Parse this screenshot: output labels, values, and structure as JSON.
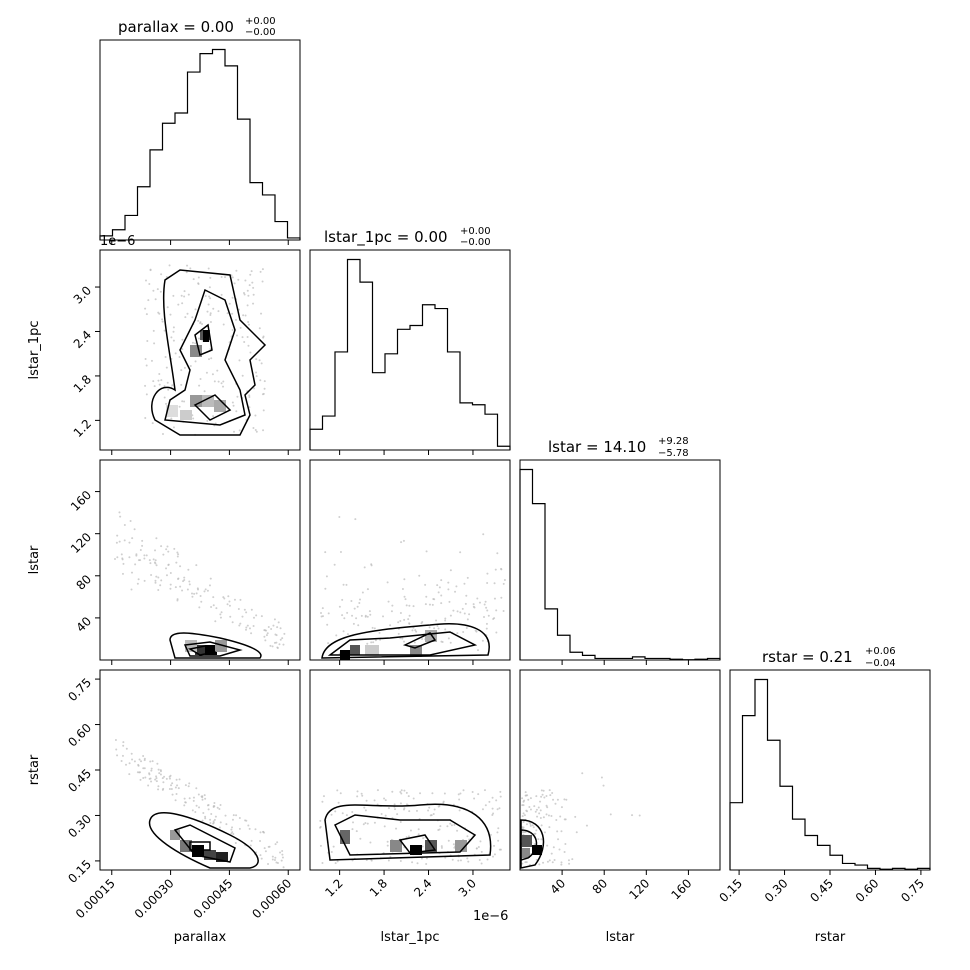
{
  "chart_data": {
    "type": "corner",
    "labels": {
      "x": [
        "parallax",
        "lstar_1pc",
        "lstar",
        "rstar"
      ],
      "y": [
        "lstar_1pc",
        "lstar",
        "rstar"
      ]
    },
    "titles": [
      {
        "param": "parallax",
        "text": "parallax = 0.00",
        "plus": "+0.00",
        "minus": "−0.00"
      },
      {
        "param": "lstar_1pc",
        "text": "lstar_1pc = 0.00",
        "plus": "+0.00",
        "minus": "−0.00"
      },
      {
        "param": "lstar",
        "text": "lstar = 14.10",
        "plus": "+9.28",
        "minus": "−5.78"
      },
      {
        "param": "rstar",
        "text": "rstar = 0.21",
        "plus": "+0.06",
        "minus": "−0.04"
      }
    ],
    "offsets": {
      "parallax_x": "",
      "lstar_1pc_x": "1e−6",
      "lstar_1pc_y": "1e−6"
    },
    "axes": {
      "parallax": {
        "range": [
          0.00012,
          0.00063
        ],
        "ticks": [
          "0.00015",
          "0.00030",
          "0.00045",
          "0.00060"
        ],
        "tick_values": [
          0.00015,
          0.0003,
          0.00045,
          0.0006
        ]
      },
      "lstar_1pc": {
        "range": [
          0.8,
          3.5
        ],
        "ticks": [
          "1.2",
          "1.8",
          "2.4",
          "3.0"
        ],
        "tick_values": [
          1.2,
          1.8,
          2.4,
          3.0
        ]
      },
      "lstar": {
        "range": [
          0,
          190
        ],
        "ticks": [
          "40",
          "80",
          "120",
          "160"
        ],
        "tick_values": [
          40,
          80,
          120,
          160
        ]
      },
      "rstar": {
        "range": [
          0.12,
          0.78
        ],
        "ticks": [
          "0.15",
          "0.30",
          "0.45",
          "0.60",
          "0.75"
        ],
        "tick_values": [
          0.15,
          0.3,
          0.45,
          0.6,
          0.75
        ]
      }
    },
    "histograms": {
      "parallax": [
        0.2,
        0.5,
        1.2,
        2.6,
        4.4,
        5.7,
        6.2,
        8.2,
        9.1,
        9.3,
        8.5,
        5.9,
        2.8,
        2.2,
        0.9,
        0.1
      ],
      "lstar_1pc": [
        1.1,
        1.8,
        5.2,
        10.1,
        8.9,
        4.1,
        5.1,
        6.4,
        6.6,
        7.7,
        7.5,
        5.2,
        2.5,
        2.4,
        1.9,
        0.2
      ],
      "lstar": [
        12.3,
        10.1,
        3.3,
        1.6,
        0.5,
        0.3,
        0.1,
        0.1,
        0.1,
        0.2,
        0.1,
        0.1,
        0.05,
        0.02,
        0.05,
        0.1
      ],
      "rstar": [
        4.1,
        9.4,
        11.6,
        7.9,
        5.1,
        3.1,
        2.1,
        1.5,
        0.9,
        0.4,
        0.3,
        0.1,
        0.05,
        0.1,
        0.05,
        0.1
      ]
    },
    "grid": false,
    "legend": "none"
  }
}
